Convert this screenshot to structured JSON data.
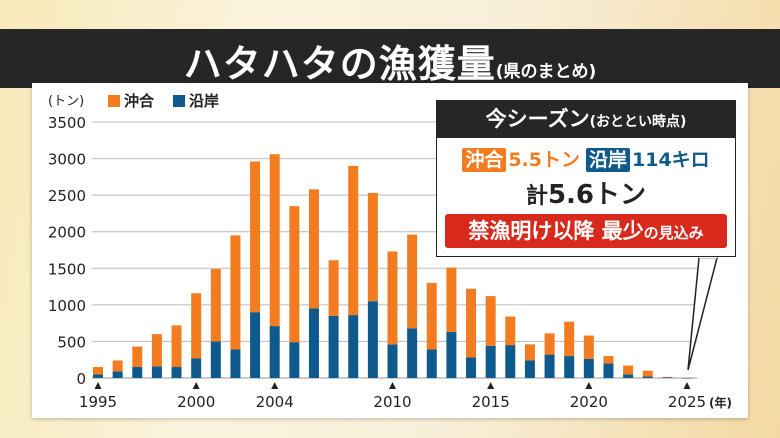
{
  "header": {
    "title": "ハタハタの漁獲量",
    "subtitle": "(県のまとめ)"
  },
  "legend": {
    "unit": "(トン)",
    "items": [
      {
        "label": "沖合",
        "color": "#f47c20"
      },
      {
        "label": "沿岸",
        "color": "#0f5a8c"
      }
    ]
  },
  "callout": {
    "title": "今シーズン",
    "title_note": "(おととい時点)",
    "offshore_tag": "沖合",
    "offshore_value": "5.5トン",
    "coastal_tag": "沿岸",
    "coastal_value": "114キロ",
    "total_prefix": "計",
    "total_value": "5.6トン",
    "alert_main": "禁漁明け以降 最少",
    "alert_suffix": "の見込み",
    "alert_color": "#d9291c"
  },
  "chart_data": {
    "type": "bar",
    "stacked": true,
    "title": "ハタハタの漁獲量",
    "ylabel": "(トン)",
    "xlabel": "(年)",
    "ylim": [
      0,
      3500
    ],
    "yticks": [
      0,
      500,
      1000,
      1500,
      2000,
      2500,
      3000,
      3500
    ],
    "xtick_labels": [
      "1995",
      "2000",
      "2004",
      "2010",
      "2015",
      "2020",
      "2025"
    ],
    "xtick_suffix": "(年)",
    "grid": true,
    "legend_position": "top-left",
    "categories": [
      1995,
      1996,
      1997,
      1998,
      1999,
      2000,
      2001,
      2002,
      2003,
      2004,
      2005,
      2006,
      2007,
      2008,
      2009,
      2010,
      2011,
      2012,
      2013,
      2014,
      2015,
      2016,
      2017,
      2018,
      2019,
      2020,
      2021,
      2022,
      2023,
      2024,
      2025
    ],
    "series": [
      {
        "name": "沿岸",
        "color": "#0f5a8c",
        "values": [
          50,
          90,
          150,
          160,
          150,
          270,
          500,
          390,
          900,
          710,
          490,
          950,
          850,
          860,
          1050,
          460,
          680,
          390,
          630,
          280,
          440,
          450,
          240,
          320,
          300,
          260,
          200,
          50,
          20,
          10,
          0.1
        ]
      },
      {
        "name": "沖合",
        "color": "#f47c20",
        "values": [
          100,
          150,
          280,
          440,
          570,
          890,
          990,
          1560,
          2060,
          2350,
          1860,
          1630,
          760,
          2040,
          1480,
          1270,
          1280,
          910,
          880,
          940,
          680,
          390,
          220,
          290,
          470,
          320,
          100,
          120,
          80,
          5,
          5.5
        ]
      }
    ]
  }
}
